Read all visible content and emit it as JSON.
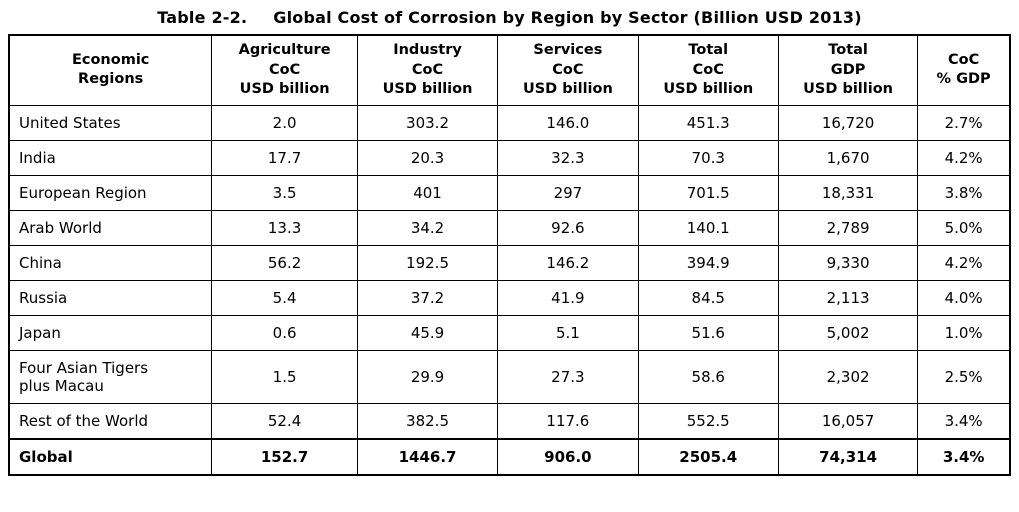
{
  "title": {
    "label": "Table 2-2.",
    "text": "Global Cost of Corrosion by Region by Sector (Billion USD 2013)"
  },
  "table": {
    "columns": [
      {
        "id": "region",
        "header": "Economic\nRegions"
      },
      {
        "id": "agriculture",
        "header": "Agriculture\nCoC\nUSD billion"
      },
      {
        "id": "industry",
        "header": "Industry\nCoC\nUSD billion"
      },
      {
        "id": "services",
        "header": "Services\nCoC\nUSD billion"
      },
      {
        "id": "total_coc",
        "header": "Total\nCoC\nUSD billion"
      },
      {
        "id": "total_gdp",
        "header": "Total\nGDP\nUSD billion"
      },
      {
        "id": "coc_pct_gdp",
        "header": "CoC\n% GDP"
      }
    ],
    "rows": [
      {
        "region": "United States",
        "values": [
          "2.0",
          "303.2",
          "146.0",
          "451.3",
          "16,720",
          "2.7%"
        ]
      },
      {
        "region": "India",
        "values": [
          "17.7",
          "20.3",
          "32.3",
          "70.3",
          "1,670",
          "4.2%"
        ]
      },
      {
        "region": "European Region",
        "values": [
          "3.5",
          "401",
          "297",
          "701.5",
          "18,331",
          "3.8%"
        ]
      },
      {
        "region": "Arab World",
        "values": [
          "13.3",
          "34.2",
          "92.6",
          "140.1",
          "2,789",
          "5.0%"
        ]
      },
      {
        "region": "China",
        "values": [
          "56.2",
          "192.5",
          "146.2",
          "394.9",
          "9,330",
          "4.2%"
        ]
      },
      {
        "region": "Russia",
        "values": [
          "5.4",
          "37.2",
          "41.9",
          "84.5",
          "2,113",
          "4.0%"
        ]
      },
      {
        "region": "Japan",
        "values": [
          "0.6",
          "45.9",
          "5.1",
          "51.6",
          "5,002",
          "1.0%"
        ]
      },
      {
        "region": "Four Asian Tigers\nplus Macau",
        "values": [
          "1.5",
          "29.9",
          "27.3",
          "58.6",
          "2,302",
          "2.5%"
        ]
      },
      {
        "region": "Rest of the World",
        "values": [
          "52.4",
          "382.5",
          "117.6",
          "552.5",
          "16,057",
          "3.4%"
        ]
      }
    ],
    "footer": {
      "region": "Global",
      "values": [
        "152.7",
        "1446.7",
        "906.0",
        "2505.4",
        "74,314",
        "3.4%"
      ]
    }
  }
}
